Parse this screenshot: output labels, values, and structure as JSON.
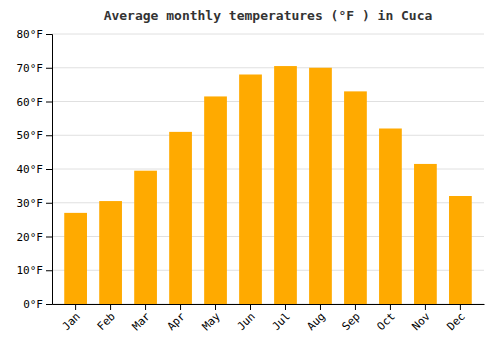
{
  "chart_data": {
    "type": "bar",
    "title": "Average monthly temperatures (°F ) in Cuca",
    "categories": [
      "Jan",
      "Feb",
      "Mar",
      "Apr",
      "May",
      "Jun",
      "Jul",
      "Aug",
      "Sep",
      "Oct",
      "Nov",
      "Dec"
    ],
    "values": [
      27,
      30.5,
      39.5,
      51,
      61.5,
      68,
      70.5,
      70,
      63,
      52,
      41.5,
      32
    ],
    "color": "#FFAA00",
    "ylim": [
      0,
      80
    ],
    "yticks": [
      {
        "value": 0,
        "label": "0°F"
      },
      {
        "value": 10,
        "label": "10°F"
      },
      {
        "value": 20,
        "label": "20°F"
      },
      {
        "value": 30,
        "label": "30°F"
      },
      {
        "value": 40,
        "label": "40°F"
      },
      {
        "value": 50,
        "label": "50°F"
      },
      {
        "value": 60,
        "label": "60°F"
      },
      {
        "value": 70,
        "label": "70°F"
      },
      {
        "value": 80,
        "label": "80°F"
      }
    ],
    "grid": true
  }
}
